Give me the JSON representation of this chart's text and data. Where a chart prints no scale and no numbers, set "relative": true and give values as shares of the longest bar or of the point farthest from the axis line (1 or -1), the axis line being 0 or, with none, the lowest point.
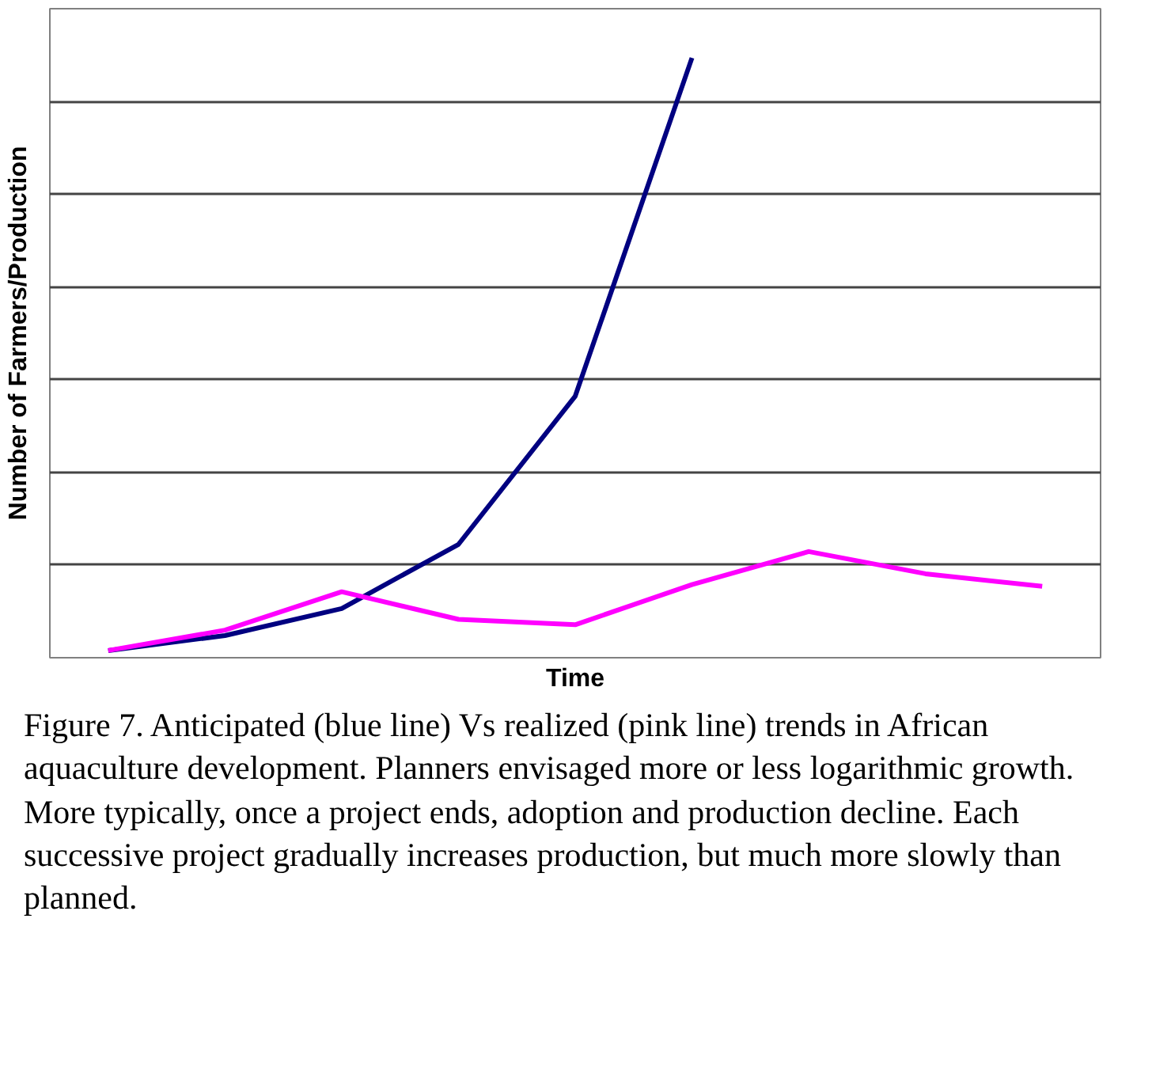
{
  "chart_data": {
    "type": "line",
    "xlabel": "Time",
    "ylabel": "Number of Farmers/Production",
    "relative": true,
    "grid": "y",
    "categories": [
      null,
      null,
      null,
      null,
      null,
      null,
      null,
      null,
      null
    ],
    "series": [
      {
        "color": "#000080",
        "values": [
          0.012,
          0.037,
          0.082,
          0.189,
          0.436,
          1.0,
          null,
          null,
          null
        ]
      },
      {
        "color": "#ff00ff",
        "values": [
          0.012,
          0.046,
          0.11,
          0.064,
          0.055,
          0.122,
          0.177,
          0.14,
          0.119
        ]
      }
    ],
    "annotations": [
      "Figure 7.  Anticipated (blue line) Vs realized (pink line) trends in African aquaculture development. Planners envisaged more or less logarithmic growth. More typically, once a project ends, adoption and production decline. Each successive project gradually increases production, but much more slowly than planned."
    ]
  }
}
